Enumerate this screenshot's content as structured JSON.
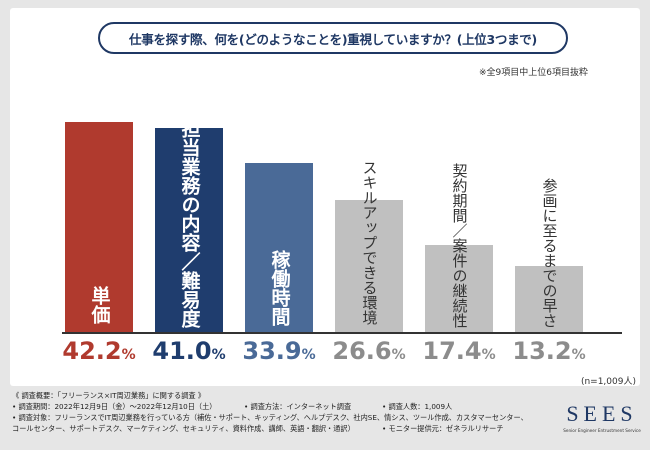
{
  "chart_data": {
    "type": "bar",
    "title": "仕事を探す際、何を(どのようなことを)重視していますか？(上位3つまで)",
    "subtitle": "※全9項目中上位6項目抜粋",
    "categories": [
      "単価",
      "担当業務の内容／難易度",
      "稼働時間",
      "スキルアップできる環境",
      "契約期間／案件の継続性",
      "参画に至るまでの早さ"
    ],
    "values": [
      42.2,
      41.0,
      33.9,
      26.6,
      17.4,
      13.2
    ],
    "value_labels": [
      "42.2",
      "41.0",
      "33.9",
      "26.6",
      "17.4",
      "13.2"
    ],
    "unit": "%",
    "ylim": [
      0,
      45
    ],
    "sample_size": "(n=1,009人)",
    "colors": [
      "#b03a2e",
      "#1f3d6e",
      "#4a6a97",
      "#c0c0c0",
      "#c0c0c0",
      "#c0c0c0"
    ],
    "label_colors": [
      "#ffffff",
      "#ffffff",
      "#ffffff",
      "#ffffff",
      "#ffffff",
      "#ffffff"
    ],
    "value_colors": [
      "#b03a2e",
      "#1f3d6e",
      "#4a6a97",
      "#8c8c8c",
      "#8c8c8c",
      "#8c8c8c"
    ]
  },
  "footer": {
    "heading": "《 調査概要：「フリーランス×IT周辺業務」に関する調査 》",
    "period": "• 調査期間：2022年12月9日（金）～2022年12月10日（土）",
    "method": "• 調査方法：インターネット調査",
    "count": "• 調査人数：1,009人",
    "target_1": "• 調査対象：フリーランスでIT周辺業務を行っている方（補佐・サポート、キッティング、ヘルプデスク、社内SE、情シス、ツール作成、カスタマーセンター、",
    "target_2": "コールセンター、サポートデスク、マーケティング、セキュリティ、資料作成、講師、英語・翻訳・通訳）",
    "provider": "• モニター提供元：ゼネラルリサーチ"
  },
  "logo": {
    "main": "SEES",
    "sub": "Senior Engineer Entrustment Service"
  }
}
